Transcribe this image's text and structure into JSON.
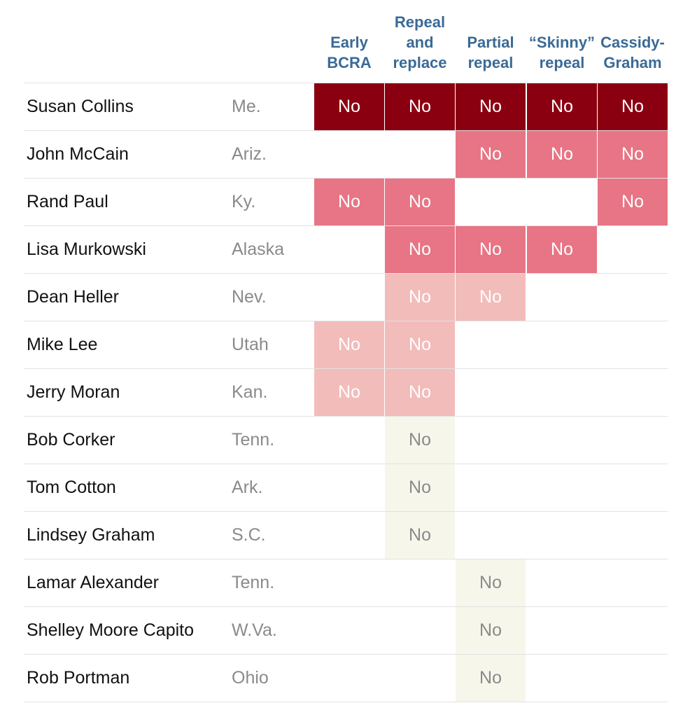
{
  "chart_data": {
    "type": "table",
    "columns": [
      {
        "id": "early_bcra",
        "lines": [
          "Early",
          "BCRA"
        ]
      },
      {
        "id": "repeal_replace",
        "lines": [
          "Repeal",
          "and",
          "replace"
        ]
      },
      {
        "id": "partial_repeal",
        "lines": [
          "Partial",
          "repeal"
        ]
      },
      {
        "id": "skinny_repeal",
        "lines": [
          "“Skinny”",
          "repeal"
        ]
      },
      {
        "id": "cassidy_graham",
        "lines": [
          "Cassidy-",
          "Graham"
        ]
      }
    ],
    "vote_label": "No",
    "levels": {
      "dark": {
        "bg": "#8b0010",
        "fg": "#ffffff"
      },
      "mid": {
        "bg": "#e77585",
        "fg": "#ffffff"
      },
      "light": {
        "bg": "#f2bcbb",
        "fg": "#ffffff"
      },
      "pale": {
        "bg": "#f6f7ea",
        "fg": "#8a8a8a"
      }
    },
    "senators": [
      {
        "name": "Susan Collins",
        "state": "Me.",
        "level": "dark",
        "votes": [
          1,
          1,
          1,
          1,
          1
        ]
      },
      {
        "name": "John McCain",
        "state": "Ariz.",
        "level": "mid",
        "votes": [
          0,
          0,
          1,
          1,
          1
        ]
      },
      {
        "name": "Rand Paul",
        "state": "Ky.",
        "level": "mid",
        "votes": [
          1,
          1,
          0,
          0,
          1
        ]
      },
      {
        "name": "Lisa Murkowski",
        "state": "Alaska",
        "level": "mid",
        "votes": [
          0,
          1,
          1,
          1,
          0
        ]
      },
      {
        "name": "Dean Heller",
        "state": "Nev.",
        "level": "light",
        "votes": [
          0,
          1,
          1,
          0,
          0
        ]
      },
      {
        "name": "Mike Lee",
        "state": "Utah",
        "level": "light",
        "votes": [
          1,
          1,
          0,
          0,
          0
        ]
      },
      {
        "name": "Jerry Moran",
        "state": "Kan.",
        "level": "light",
        "votes": [
          1,
          1,
          0,
          0,
          0
        ]
      },
      {
        "name": "Bob Corker",
        "state": "Tenn.",
        "level": "pale",
        "votes": [
          0,
          1,
          0,
          0,
          0
        ]
      },
      {
        "name": "Tom Cotton",
        "state": "Ark.",
        "level": "pale",
        "votes": [
          0,
          1,
          0,
          0,
          0
        ]
      },
      {
        "name": "Lindsey Graham",
        "state": "S.C.",
        "level": "pale",
        "votes": [
          0,
          1,
          0,
          0,
          0
        ]
      },
      {
        "name": "Lamar Alexander",
        "state": "Tenn.",
        "level": "pale",
        "votes": [
          0,
          0,
          1,
          0,
          0
        ]
      },
      {
        "name": "Shelley Moore Capito",
        "state": "W.Va.",
        "level": "pale",
        "votes": [
          0,
          0,
          1,
          0,
          0
        ]
      },
      {
        "name": "Rob Portman",
        "state": "Ohio",
        "level": "pale",
        "votes": [
          0,
          0,
          1,
          0,
          0
        ]
      }
    ]
  }
}
